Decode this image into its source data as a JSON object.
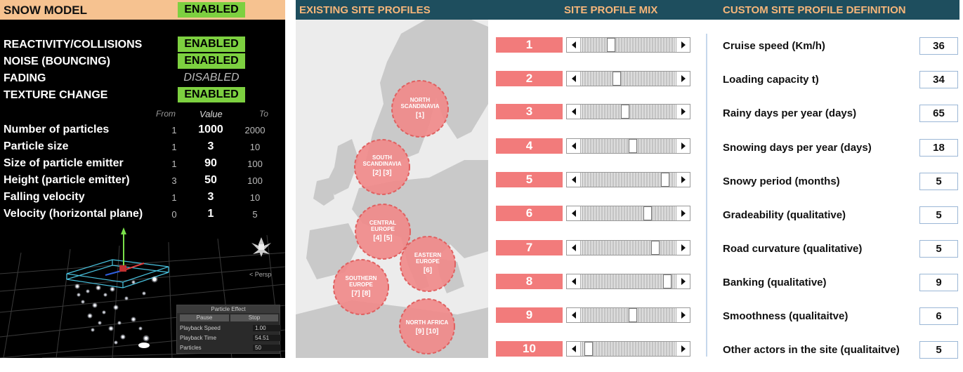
{
  "snow": {
    "title": "SNOW MODEL",
    "status": "ENABLED",
    "options": [
      {
        "label": "REACTIVITY/COLLISIONS",
        "status": "ENABLED",
        "enabled": true
      },
      {
        "label": "NOISE (BOUNCING)",
        "status": "ENABLED",
        "enabled": true
      },
      {
        "label": "FADING",
        "status": "DISABLED",
        "enabled": false
      },
      {
        "label": "TEXTURE CHANGE",
        "status": "ENABLED",
        "enabled": true
      }
    ],
    "columns": {
      "from": "From",
      "value": "Value",
      "to": "To"
    },
    "params": [
      {
        "name": "Number of particles",
        "from": "1",
        "value": "1000",
        "to": "2000"
      },
      {
        "name": "Particle size",
        "from": "1",
        "value": "3",
        "to": "10"
      },
      {
        "name": "Size of particle emitter",
        "from": "1",
        "value": "90",
        "to": "100"
      },
      {
        "name": "Height (particle emitter)",
        "from": "3",
        "value": "50",
        "to": "100"
      },
      {
        "name": "Falling velocity",
        "from": "1",
        "value": "3",
        "to": "10"
      },
      {
        "name": "Velocity (horizontal plane)",
        "from": "0",
        "value": "1",
        "to": "5"
      }
    ],
    "particle_effect": {
      "title": "Particle Effect",
      "pause": "Pause",
      "stop": "Stop",
      "rows": [
        {
          "label": "Playback Speed",
          "value": "1.00"
        },
        {
          "label": "Playback Time",
          "value": "54.51"
        },
        {
          "label": "Particles",
          "value": "50"
        }
      ]
    },
    "persp": "< Persp"
  },
  "sections": {
    "existing": "EXISTING SITE PROFILES",
    "mix": "SITE PROFILE MIX",
    "custom": "CUSTOM SITE PROFILE DEFINITION"
  },
  "regions": [
    {
      "name": "NORTH\nSCANDINAVIA",
      "ids": "[1]"
    },
    {
      "name": "SOUTH\nSCANDINAVIA",
      "ids": "[2] [3]"
    },
    {
      "name": "CENTRAL\nEUROPE",
      "ids": "[4] [5]"
    },
    {
      "name": "EASTERN\nEUROPE",
      "ids": "[6]"
    },
    {
      "name": "SOUTHERN\nEUROPE",
      "ids": "[7] [8]"
    },
    {
      "name": "NORTH AFRICA",
      "ids": "[9] [10]"
    }
  ],
  "mix": [
    {
      "label": "1",
      "level": 0.3
    },
    {
      "label": "2",
      "level": 0.36
    },
    {
      "label": "3",
      "level": 0.46
    },
    {
      "label": "4",
      "level": 0.55
    },
    {
      "label": "5",
      "level": 0.93
    },
    {
      "label": "6",
      "level": 0.73
    },
    {
      "label": "7",
      "level": 0.82
    },
    {
      "label": "8",
      "level": 0.96
    },
    {
      "label": "9",
      "level": 0.55
    },
    {
      "label": "10",
      "level": 0.03
    }
  ],
  "custom": [
    {
      "label": "Cruise speed (Km/h)",
      "value": "36"
    },
    {
      "label": "Loading capacity t)",
      "value": "34"
    },
    {
      "label": "Rainy days per year (days)",
      "value": "65"
    },
    {
      "label": "Snowing days per year (days)",
      "value": "18"
    },
    {
      "label": "Snowy period (months)",
      "value": "5"
    },
    {
      "label": "Gradeability (qualitative)",
      "value": "5"
    },
    {
      "label": "Road curvature (qualitative)",
      "value": "5"
    },
    {
      "label": "Banking (qualitative)",
      "value": "9"
    },
    {
      "label": "Smoothness (qualitaitve)",
      "value": "6"
    },
    {
      "label": "Other actors in the site (qualitaitve)",
      "value": "5"
    }
  ],
  "colors": {
    "header_bar": "#1e4e5e",
    "section_text": "#f6b67a",
    "enabled_badge": "#7dd040",
    "profile_red": "#f27b7b",
    "bubble": "#f08a8a"
  }
}
